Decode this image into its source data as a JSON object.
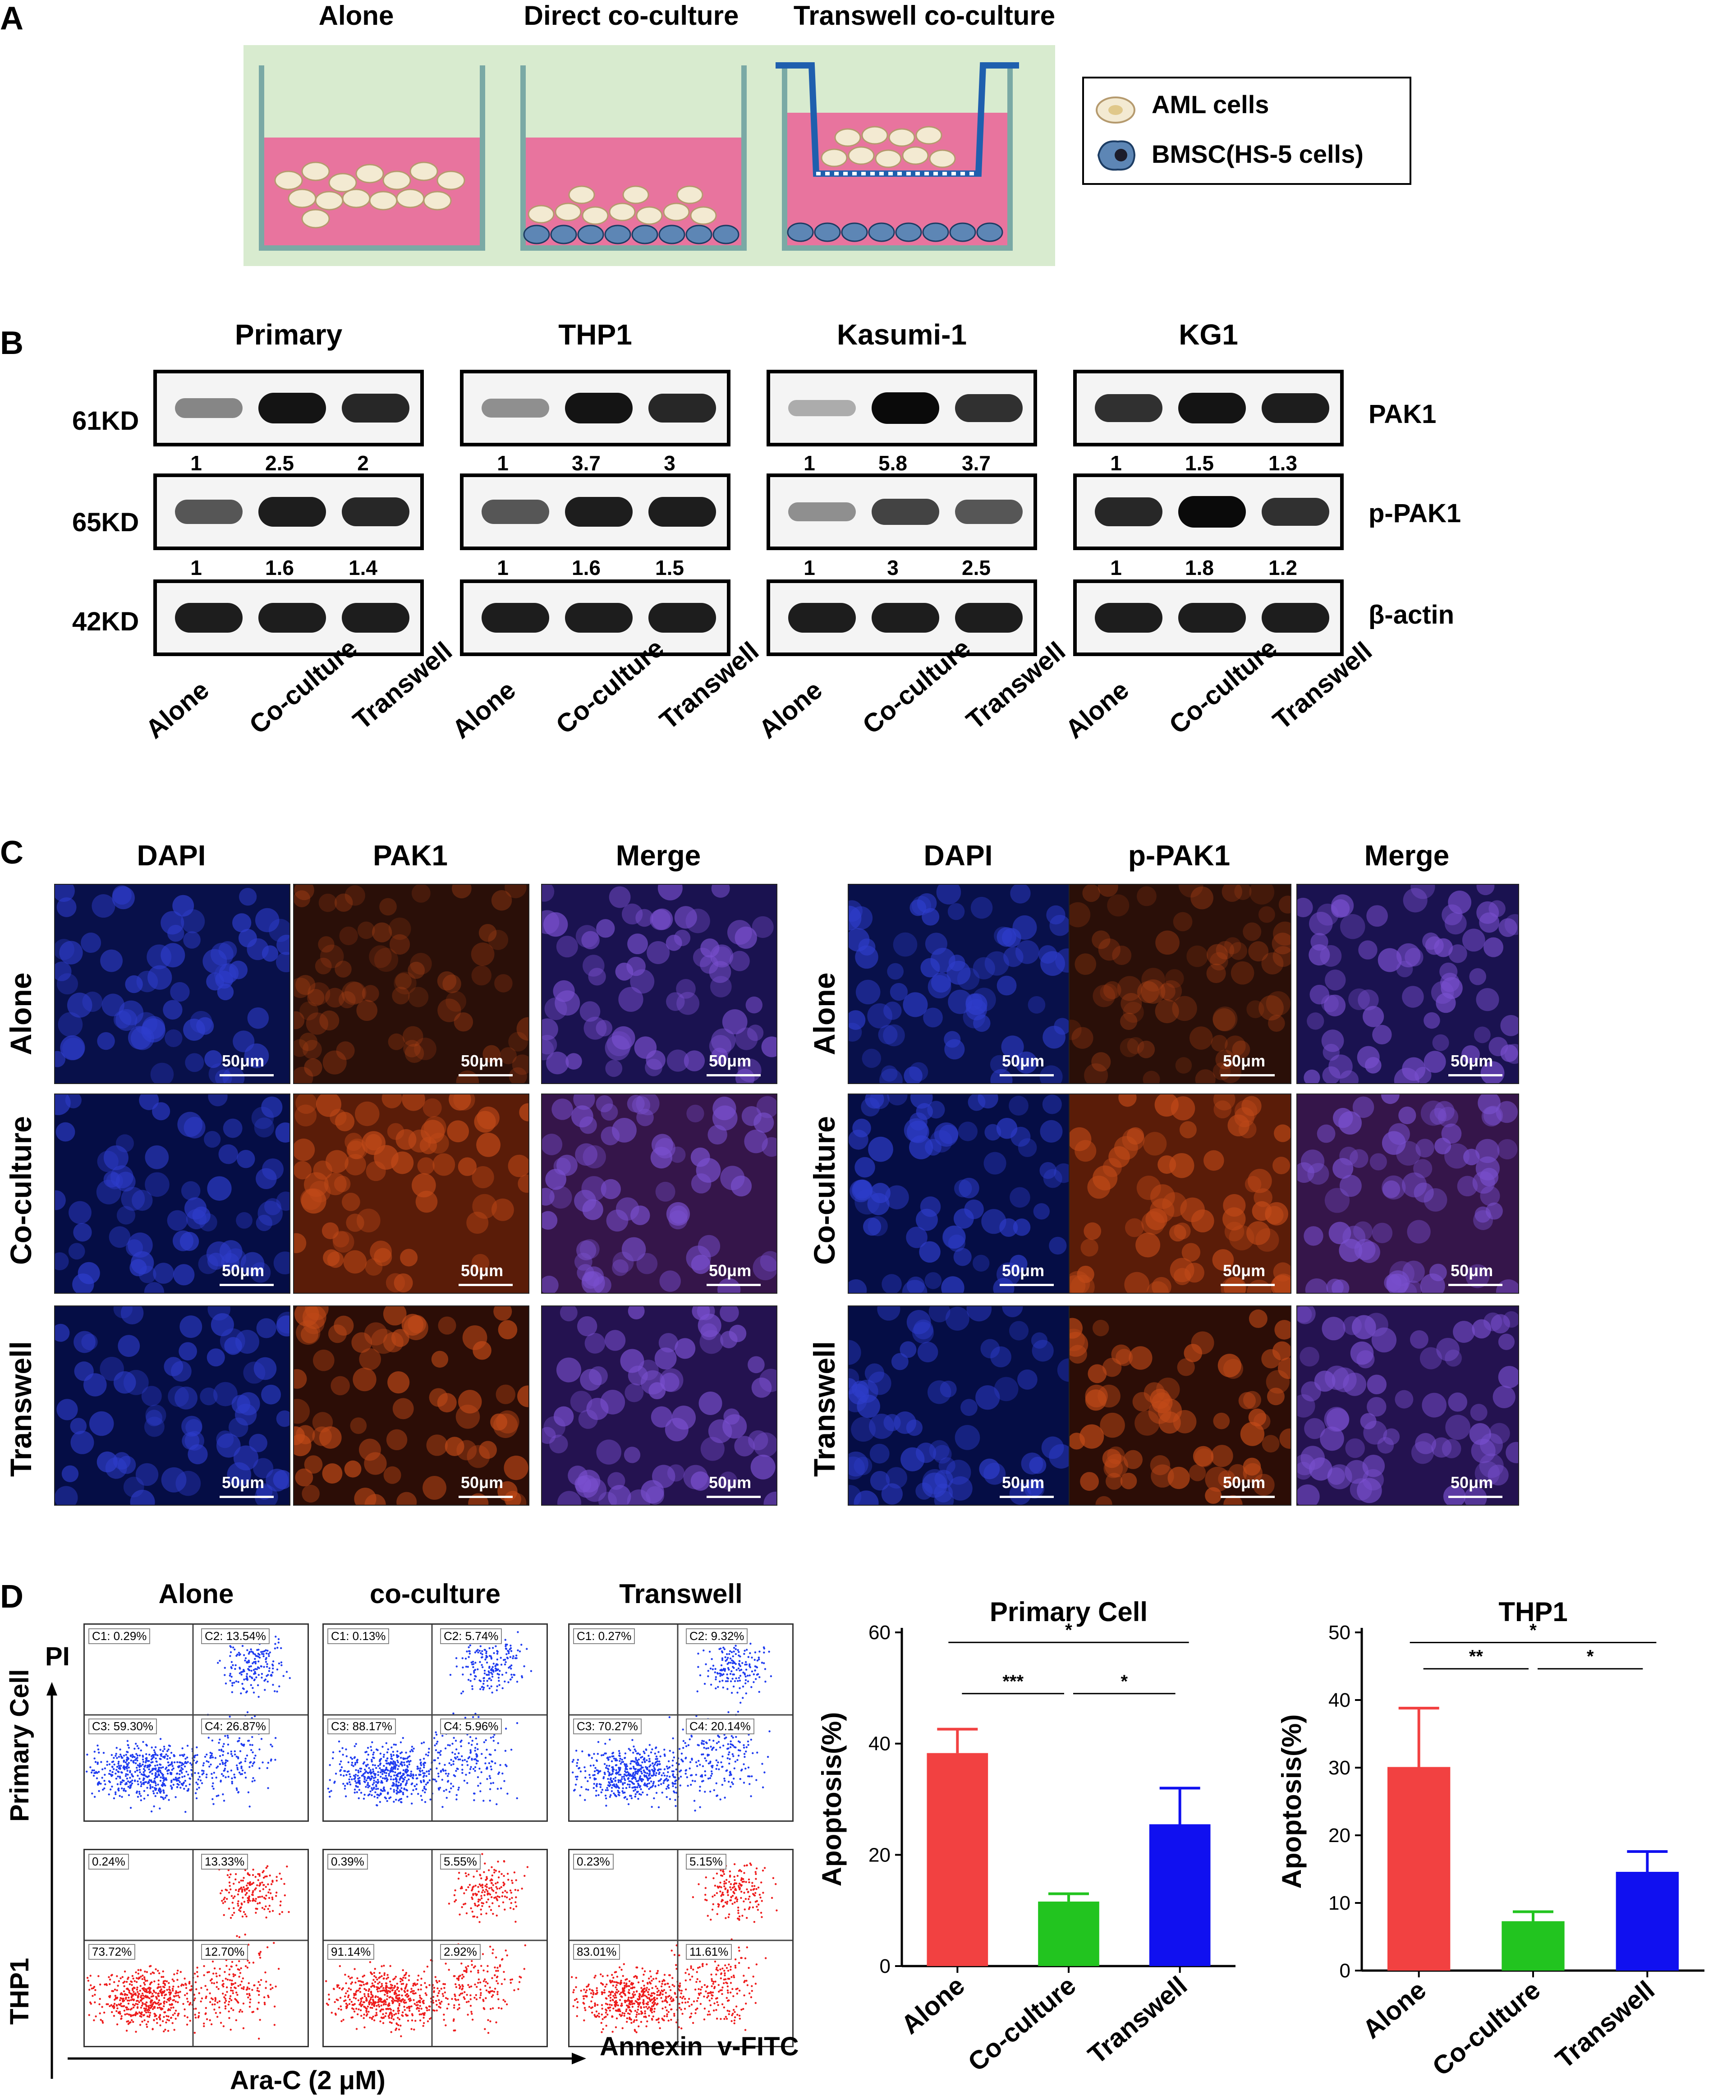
{
  "panels": {
    "a": "A",
    "b": "B",
    "c": "C",
    "d": "D"
  },
  "panel_a": {
    "conditions": [
      "Alone",
      "Direct co-culture",
      "Transwell co-culture"
    ],
    "legend": {
      "aml": "AML cells",
      "bmsc": "BMSC(HS-5 cells)"
    },
    "colors": {
      "background": "#d8ebcf",
      "medium": "#e8749e",
      "aml_cell": "#f3ead2",
      "bmsc_cell": "#5d86b5",
      "insert": "#1f5fae"
    }
  },
  "panel_b": {
    "cell_lines": [
      "Primary",
      "THP1",
      "Kasumi-1",
      "KG1"
    ],
    "weights": [
      "61KD",
      "65KD",
      "42KD"
    ],
    "proteins": [
      "PAK1",
      "p-PAK1",
      "β-actin"
    ],
    "lanes": [
      "Alone",
      "Co-culture",
      "Transwell"
    ],
    "pak1_ratios": [
      [
        "1",
        "2.5",
        "2"
      ],
      [
        "1",
        "3.7",
        "3"
      ],
      [
        "1",
        "5.8",
        "3.7"
      ],
      [
        "1",
        "1.5",
        "1.3"
      ]
    ],
    "ppak1_ratios": [
      [
        "1",
        "1.6",
        "1.4"
      ],
      [
        "1",
        "1.6",
        "1.5"
      ],
      [
        "1",
        "3",
        "2.5"
      ],
      [
        "1",
        "1.8",
        "1.2"
      ]
    ]
  },
  "panel_c": {
    "left_headers": [
      "DAPI",
      "PAK1",
      "Merge"
    ],
    "right_headers": [
      "DAPI",
      "p-PAK1",
      "Merge"
    ],
    "rows": [
      "Alone",
      "Co-culture",
      "Transwell"
    ],
    "scale": "50μm"
  },
  "panel_d": {
    "facs_columns": [
      "Alone",
      "co-culture",
      "Transwell"
    ],
    "facs_rows": [
      "Primary Cell",
      "THP1"
    ],
    "y_axis": "PI",
    "x_axis_left": "Ara-C (2 μM)",
    "x_axis_right": "Annexin  v-FITC",
    "primary_quadrants": [
      [
        "C1: 0.29%",
        "C2: 13.54%",
        "C3: 59.30%",
        "C4: 26.87%"
      ],
      [
        "C1: 0.13%",
        "C2: 5.74%",
        "C3: 88.17%",
        "C4: 5.96%"
      ],
      [
        "C1: 0.27%",
        "C2: 9.32%",
        "C3: 70.27%",
        "C4: 20.14%"
      ]
    ],
    "thp1_quadrants": [
      [
        "0.24%",
        "13.33%",
        "73.72%",
        "12.70%"
      ],
      [
        "0.39%",
        "5.55%",
        "91.14%",
        "2.92%"
      ],
      [
        "0.23%",
        "5.15%",
        "83.01%",
        "11.61%"
      ]
    ],
    "facs_colors": {
      "primary": "#1f3cf0",
      "thp1": "#ee1c1c"
    }
  },
  "chart_data": [
    {
      "type": "bar",
      "title": "Primary Cell",
      "ylabel": "Apoptosis(%)",
      "categories": [
        "Alone",
        "Co-culture",
        "Transwell"
      ],
      "values": [
        38.3,
        11.6,
        25.5
      ],
      "errors": [
        4.3,
        1.4,
        6.5
      ],
      "colors": [
        "#f24141",
        "#22c41f",
        "#1010f0"
      ],
      "ylim": [
        0,
        60
      ],
      "yticks": [
        "0",
        "20",
        "40",
        "60"
      ],
      "significance": [
        {
          "label": "***",
          "from": "Alone",
          "to": "Co-culture"
        },
        {
          "label": "*",
          "from": "Co-culture",
          "to": "Transwell"
        },
        {
          "label": "*",
          "from": "Alone",
          "to": "Transwell"
        }
      ]
    },
    {
      "type": "bar",
      "title": "THP1",
      "ylabel": "Apoptosis(%)",
      "categories": [
        "Alone",
        "Co-culture",
        "Transwell"
      ],
      "values": [
        30.1,
        7.3,
        14.6
      ],
      "errors": [
        8.7,
        1.4,
        3.0
      ],
      "colors": [
        "#f24141",
        "#22c41f",
        "#1010f0"
      ],
      "ylim": [
        0,
        50
      ],
      "yticks": [
        "0",
        "10",
        "20",
        "30",
        "40",
        "50"
      ],
      "significance": [
        {
          "label": "**",
          "from": "Alone",
          "to": "Co-culture"
        },
        {
          "label": "*",
          "from": "Co-culture",
          "to": "Transwell"
        },
        {
          "label": "*",
          "from": "Alone",
          "to": "Transwell"
        }
      ]
    }
  ]
}
